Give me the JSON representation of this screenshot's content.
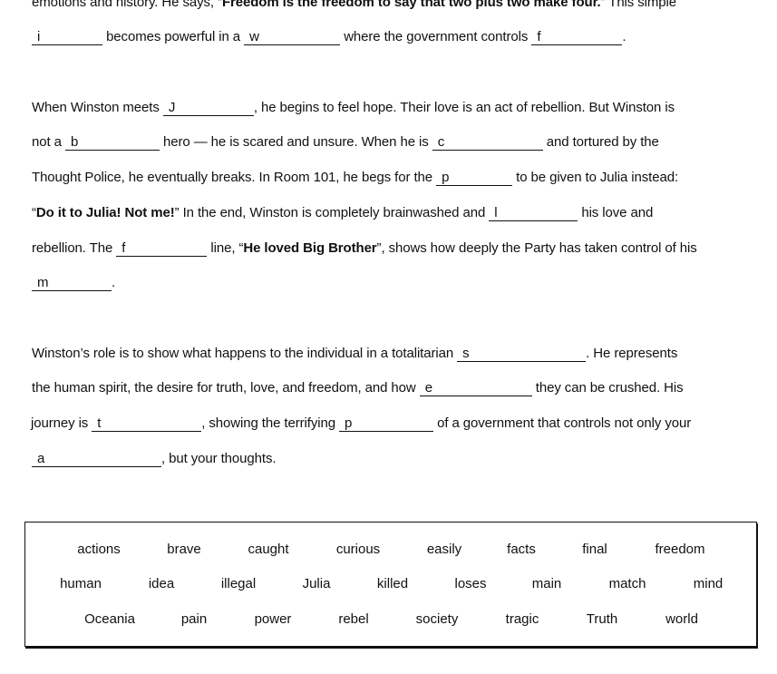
{
  "lines": [
    [
      {
        "t": "emotions and history. He says, “"
      },
      {
        "b": "Freedom is the freedom to say that two plus two make four."
      },
      {
        "t": "” This simple"
      }
    ],
    [
      {
        "blank": "i"
      },
      {
        "t": " becomes powerful in a "
      },
      {
        "blank": "w"
      },
      {
        "t": " where the government controls "
      },
      {
        "blank": "f"
      },
      {
        "t": "."
      }
    ],
    [
      {
        "t": "When Winston meets "
      },
      {
        "blank": "J"
      },
      {
        "t": ", he begins to feel hope. Their love is an act of rebellion. But Winston is"
      }
    ],
    [
      {
        "t": "not a "
      },
      {
        "blank": "b"
      },
      {
        "t": " hero — he is scared and unsure. When he is "
      },
      {
        "blank": "c"
      },
      {
        "t": " and tortured by the"
      }
    ],
    [
      {
        "t": "Thought Police, he eventually breaks. In Room 101, he begs for the "
      },
      {
        "blank": "p"
      },
      {
        "t": " to be given to Julia instead:"
      }
    ],
    [
      {
        "t": "“"
      },
      {
        "b": "Do it to Julia! Not me!"
      },
      {
        "t": "” In the end, Winston is completely brainwashed and "
      },
      {
        "blank": "l"
      },
      {
        "t": " his love and"
      }
    ],
    [
      {
        "t": "rebellion. The "
      },
      {
        "blank": "f"
      },
      {
        "t": " line, “"
      },
      {
        "b": "He loved Big Brother"
      },
      {
        "t": "”, shows how deeply the Party has taken control of his"
      }
    ],
    [
      {
        "blank": "m"
      },
      {
        "t": "."
      }
    ],
    [
      {
        "t": "Winston’s role is to show what happens to the individual in a totalitarian "
      },
      {
        "blank": "s"
      },
      {
        "t": ". He represents"
      }
    ],
    [
      {
        "t": "the human spirit, the desire for truth, love, and freedom, and how "
      },
      {
        "blank": "e"
      },
      {
        "t": " they can be crushed. His"
      }
    ],
    [
      {
        "t": "journey is "
      },
      {
        "blank": "t"
      },
      {
        "t": ", showing the terrifying "
      },
      {
        "blank": "p"
      },
      {
        "t": " of a government that controls not only your"
      }
    ],
    [
      {
        "blank": "a"
      },
      {
        "t": ", but your thoughts."
      }
    ]
  ],
  "word_bank": [
    [
      "actions",
      "brave",
      "caught",
      "curious",
      "easily",
      "facts",
      "final",
      "freedom"
    ],
    [
      "human",
      "idea",
      "illegal",
      "Julia",
      "killed",
      "loses",
      "main",
      "match",
      "mind"
    ],
    [
      "Oceania",
      "pain",
      "power",
      "rebel",
      "society",
      "tragic",
      "Truth",
      "world"
    ]
  ]
}
